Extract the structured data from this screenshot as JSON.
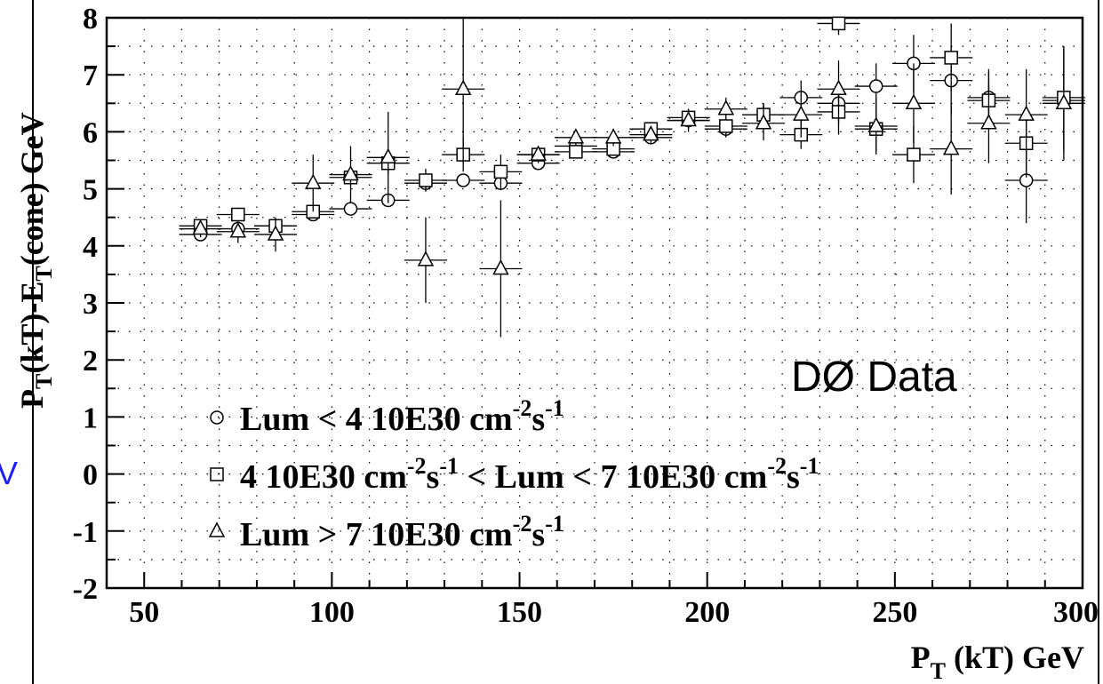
{
  "chart_data": {
    "type": "scatter",
    "xlabel": "P_T (kT) GeV",
    "ylabel": "P_T(kT)-E_T(cone) GeV",
    "xlim": [
      40,
      300
    ],
    "ylim": [
      -2,
      8
    ],
    "grid": true,
    "x_ticks": [
      "50",
      "100",
      "150",
      "200",
      "250",
      "300"
    ],
    "y_ticks": [
      "-2",
      "-1",
      "0",
      "1",
      "2",
      "3",
      "4",
      "5",
      "6",
      "7",
      "8"
    ],
    "annotation": "DØ Data",
    "edge_text": "V",
    "legend": {
      "placement": "bottom-left",
      "entries": [
        {
          "marker": "circle",
          "text": "Lum < 4 10E30 cm",
          "sup1": "-2",
          "mid": "s",
          "sup2": "-1"
        },
        {
          "marker": "square",
          "text": "4 10E30 cm",
          "sup1": "-2",
          "mid": "s",
          "sup2": "-1",
          "text2": " < Lum < 7 10E30 cm",
          "sup3": "-2",
          "mid2": "s",
          "sup4": "-1"
        },
        {
          "marker": "triangle",
          "text": "Lum > 7 10E30 cm",
          "sup1": "-2",
          "mid": "s",
          "sup2": "-1"
        }
      ]
    },
    "series": [
      {
        "marker": "circle",
        "x": [
          65,
          75,
          85,
          95,
          105,
          115,
          125,
          135,
          145,
          155,
          165,
          175,
          185,
          195,
          205,
          215,
          225,
          235,
          245,
          255,
          265,
          275,
          285,
          295
        ],
        "y": [
          4.2,
          4.3,
          4.35,
          4.55,
          4.65,
          4.8,
          5.1,
          5.15,
          5.1,
          5.45,
          5.75,
          5.65,
          5.9,
          6.2,
          6.05,
          6.3,
          6.6,
          6.5,
          6.8,
          7.2,
          6.9,
          6.6,
          5.15,
          6.55
        ],
        "yerr": [
          0.08,
          0.1,
          0.1,
          0.1,
          0.1,
          0.1,
          0.1,
          0.1,
          0.1,
          0.1,
          0.1,
          0.1,
          0.1,
          0.15,
          0.15,
          0.2,
          0.3,
          0.35,
          0.4,
          0.5,
          0.6,
          0.5,
          0.75,
          0.9
        ]
      },
      {
        "marker": "square",
        "x": [
          65,
          75,
          85,
          95,
          105,
          115,
          125,
          135,
          145,
          155,
          165,
          175,
          185,
          195,
          205,
          215,
          225,
          235,
          245,
          255,
          265,
          275,
          285,
          295
        ],
        "y": [
          4.35,
          4.55,
          4.35,
          4.6,
          5.2,
          5.45,
          5.15,
          5.6,
          5.3,
          5.6,
          5.65,
          5.7,
          6.05,
          6.25,
          6.1,
          6.3,
          5.95,
          6.35,
          6.05,
          5.6,
          7.3,
          6.55,
          5.8,
          6.6
        ],
        "yerr": [
          0.1,
          0.12,
          0.12,
          0.12,
          0.15,
          0.2,
          0.2,
          0.3,
          0.3,
          0.12,
          0.12,
          0.12,
          0.12,
          0.15,
          0.15,
          0.2,
          0.25,
          0.4,
          0.4,
          0.5,
          0.6,
          0.5,
          0.6,
          0.9
        ]
      },
      {
        "marker": "triangle",
        "x": [
          65,
          75,
          85,
          95,
          105,
          115,
          125,
          135,
          145,
          155,
          165,
          175,
          185,
          195,
          205,
          215,
          225,
          235,
          245,
          255,
          265,
          275,
          285,
          295
        ],
        "y": [
          4.3,
          4.25,
          4.2,
          5.1,
          5.25,
          5.55,
          3.75,
          6.75,
          3.6,
          5.6,
          5.9,
          5.9,
          5.95,
          6.2,
          6.4,
          6.15,
          6.3,
          6.75,
          6.1,
          6.5,
          5.7,
          6.15,
          6.3,
          6.5
        ],
        "yerr": [
          0.15,
          0.2,
          0.3,
          0.5,
          0.5,
          0.8,
          0.75,
          1.3,
          1.2,
          0.15,
          0.15,
          0.15,
          0.15,
          0.2,
          0.2,
          0.3,
          0.4,
          0.5,
          0.5,
          0.7,
          0.8,
          0.7,
          0.8,
          1.0
        ]
      }
    ],
    "extra_points": [
      {
        "marker": "square",
        "x": 235,
        "y": 7.9,
        "yerr": 0.2
      }
    ]
  }
}
